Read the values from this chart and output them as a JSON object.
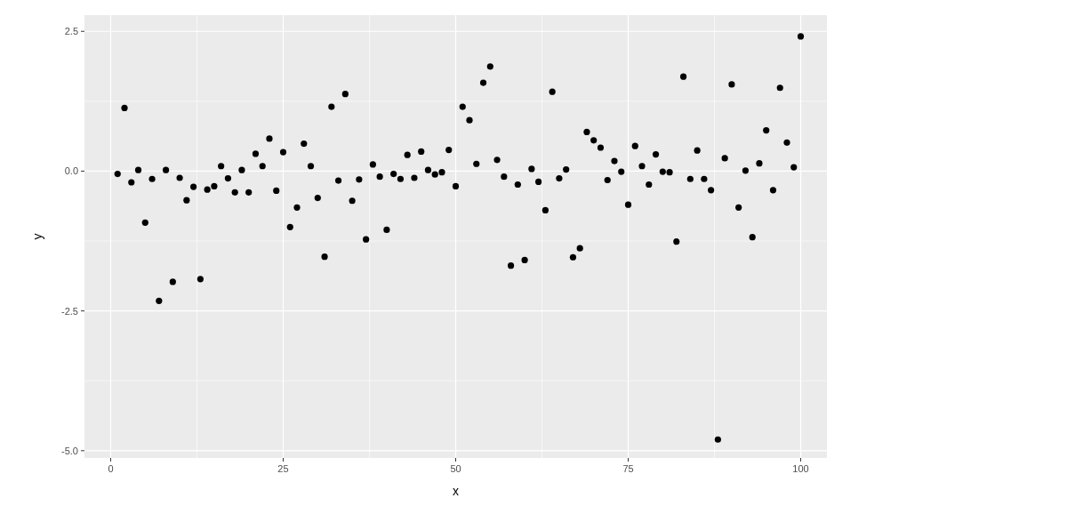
{
  "chart_data": {
    "type": "scatter",
    "xlabel": "x",
    "ylabel": "y",
    "marker": "circle",
    "grid": true,
    "xlim": [
      -3.8,
      103.8
    ],
    "ylim": [
      -5.13,
      2.79
    ],
    "xticks": [
      0,
      25,
      50,
      75,
      100
    ],
    "yticks": [
      {
        "value": -5,
        "label": "-5.0"
      },
      {
        "value": -2.5,
        "label": "-2.5"
      },
      {
        "value": 0,
        "label": "0.0"
      },
      {
        "value": 2.5,
        "label": "2.5"
      }
    ],
    "series": [
      {
        "color": "#000000",
        "x": [
          1,
          2,
          3,
          4,
          5,
          6,
          7,
          8,
          9,
          10,
          11,
          12,
          13,
          14,
          15,
          16,
          17,
          18,
          19,
          20,
          21,
          22,
          23,
          24,
          25,
          26,
          27,
          28,
          29,
          30,
          31,
          32,
          33,
          34,
          35,
          36,
          37,
          38,
          39,
          40,
          41,
          42,
          43,
          44,
          45,
          46,
          47,
          48,
          49,
          50,
          51,
          52,
          53,
          54,
          55,
          56,
          57,
          58,
          59,
          60,
          61,
          62,
          63,
          64,
          65,
          66,
          67,
          68,
          69,
          70,
          71,
          72,
          73,
          74,
          75,
          76,
          77,
          78,
          79,
          80,
          81,
          82,
          83,
          84,
          85,
          86,
          87,
          88,
          89,
          90,
          91,
          92,
          93,
          94,
          95,
          96,
          97,
          98,
          99,
          100
        ],
        "values": [
          -0.05,
          1.13,
          -0.2,
          0.02,
          -0.92,
          -0.14,
          -2.32,
          0.02,
          -1.98,
          -0.12,
          -0.52,
          -0.28,
          -1.93,
          -0.33,
          -0.27,
          0.09,
          -0.13,
          -0.38,
          0.02,
          -0.38,
          0.31,
          0.09,
          0.58,
          -0.35,
          0.34,
          -1.0,
          -0.65,
          0.49,
          0.09,
          -0.48,
          -1.53,
          1.15,
          -0.17,
          1.38,
          -0.53,
          -0.15,
          -1.22,
          0.12,
          -0.1,
          -1.05,
          -0.05,
          -0.14,
          0.29,
          -0.12,
          0.35,
          0.02,
          -0.06,
          -0.02,
          0.38,
          -0.27,
          1.15,
          0.91,
          0.13,
          1.58,
          1.87,
          0.2,
          -0.1,
          -1.69,
          -0.24,
          -1.59,
          0.04,
          -0.19,
          -0.7,
          1.42,
          -0.13,
          0.03,
          -1.54,
          -1.38,
          0.7,
          0.55,
          0.42,
          -0.16,
          0.18,
          -0.01,
          -0.6,
          0.45,
          0.09,
          -0.24,
          0.3,
          -0.01,
          -0.02,
          -1.26,
          1.69,
          -0.14,
          0.37,
          -0.14,
          -0.34,
          -4.8,
          0.23,
          1.55,
          -0.65,
          0.01,
          -1.18,
          0.14,
          0.73,
          -0.34,
          1.49,
          0.51,
          0.07,
          2.41
        ]
      }
    ]
  }
}
